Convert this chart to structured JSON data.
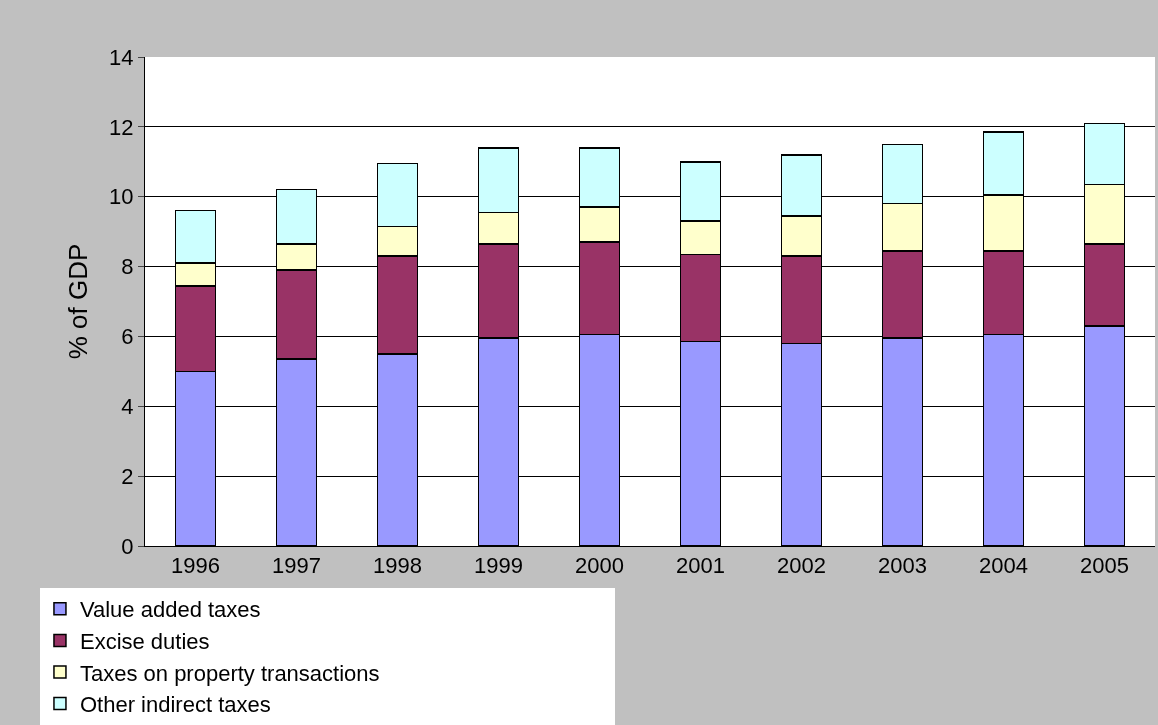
{
  "chart_data": {
    "type": "bar",
    "stacked": true,
    "ylabel": "% of GDP",
    "categories": [
      "1996",
      "1997",
      "1998",
      "1999",
      "2000",
      "2001",
      "2002",
      "2003",
      "2004",
      "2005"
    ],
    "series": [
      {
        "name": "Value added taxes",
        "color": "#9999ff",
        "values": [
          5.0,
          5.35,
          5.5,
          5.95,
          6.05,
          5.85,
          5.8,
          5.95,
          6.05,
          6.3
        ]
      },
      {
        "name": "Excise duties",
        "color": "#993366",
        "values": [
          2.45,
          2.55,
          2.8,
          2.7,
          2.65,
          2.5,
          2.5,
          2.5,
          2.4,
          2.35
        ]
      },
      {
        "name": "Taxes on property transactions",
        "color": "#ffffcc",
        "values": [
          0.65,
          0.75,
          0.85,
          0.9,
          1.0,
          0.95,
          1.15,
          1.35,
          1.6,
          1.7
        ]
      },
      {
        "name": "Other indirect taxes",
        "color": "#ccffff",
        "values": [
          1.5,
          1.55,
          1.8,
          1.85,
          1.7,
          1.7,
          1.75,
          1.7,
          1.8,
          1.75
        ]
      }
    ],
    "ylim": [
      0,
      14
    ],
    "yticks": [
      0,
      2,
      4,
      6,
      8,
      10,
      12,
      14
    ],
    "grid": "y",
    "legend": "bottom"
  }
}
